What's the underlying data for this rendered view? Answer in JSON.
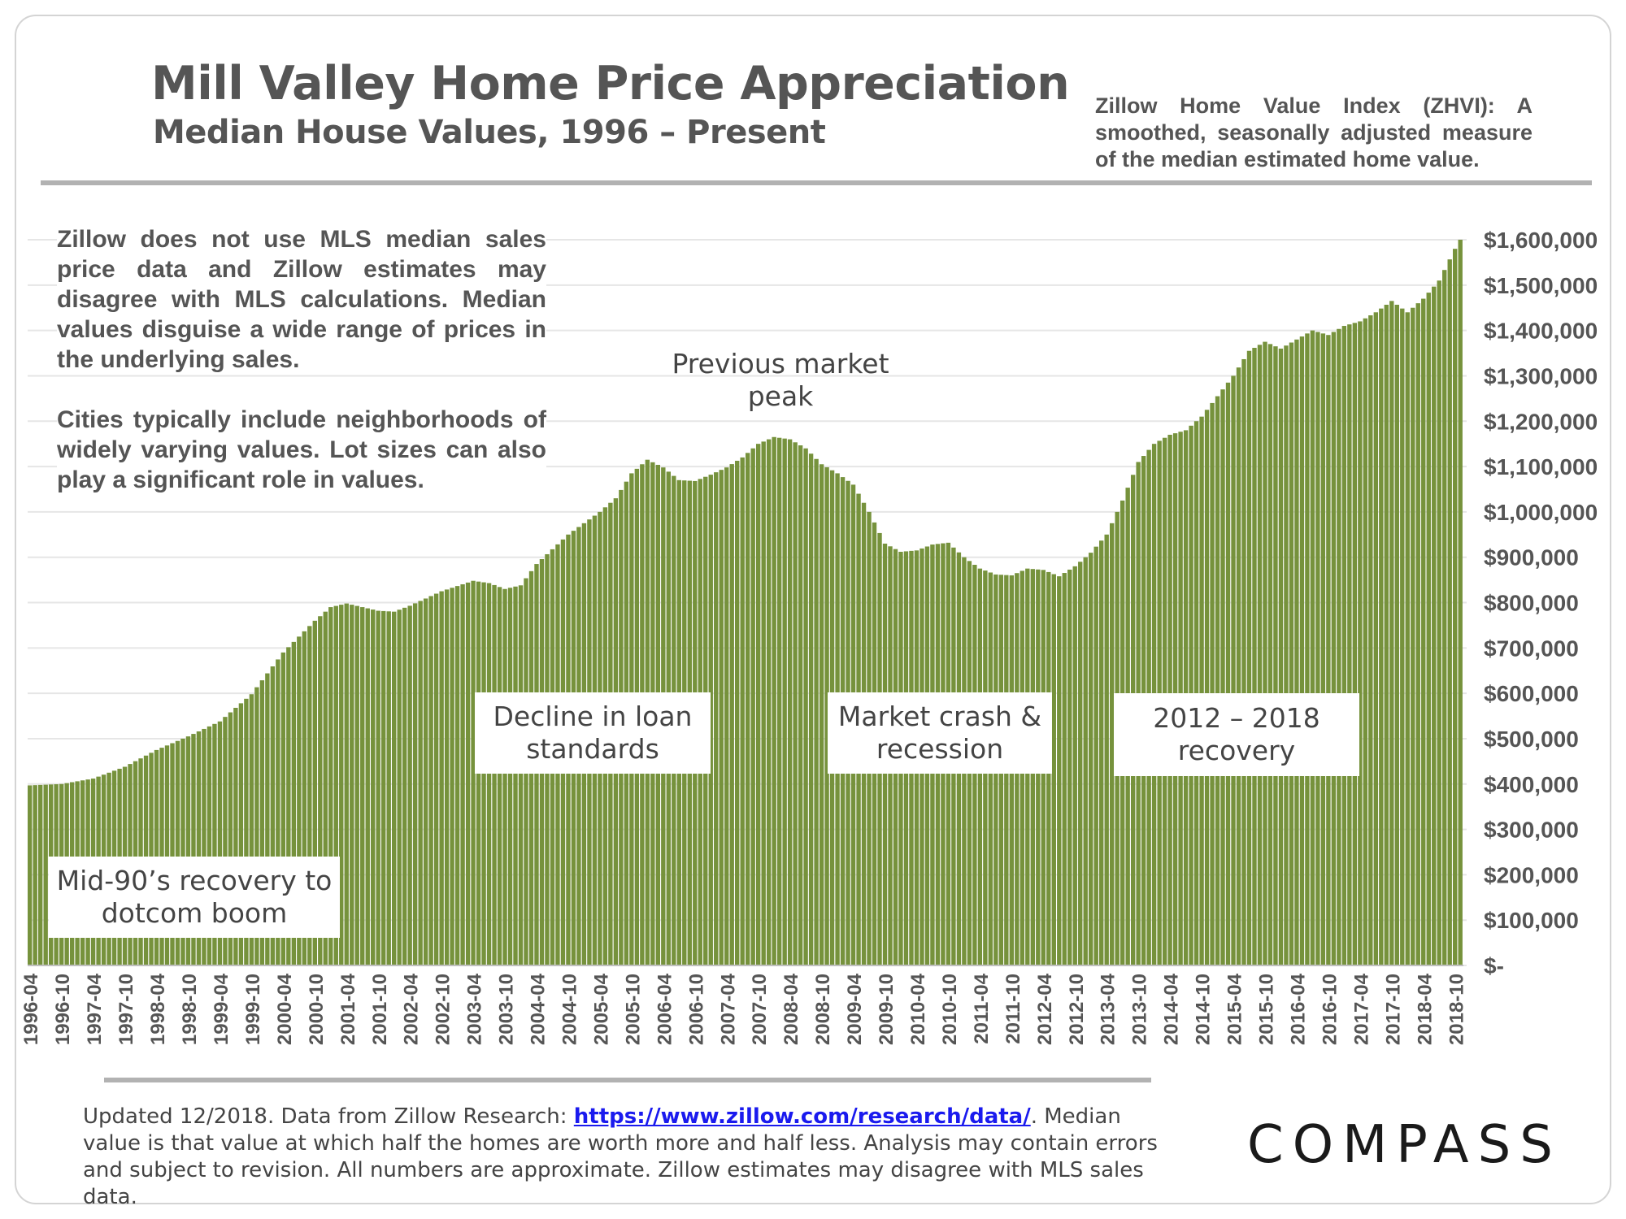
{
  "header": {
    "title": "Mill Valley Home Price Appreciation",
    "subtitle": "Median House Values, 1996 – Present",
    "zhvi_note": "Zillow Home Value Index (ZHVI): A smoothed, seasonally adjusted measure of the median estimated home value."
  },
  "notes": {
    "mls": "Zillow does not use MLS median sales price data and Zillow estimates may disagree with MLS calculations. Median values disguise a wide range of prices in the underlying sales.",
    "cities": "Cities typically include neighborhoods of widely varying values. Lot sizes can also play a significant role in values."
  },
  "callouts": {
    "mid90s": "Mid-90’s recovery to dotcom boom",
    "loans": "Decline in loan standards",
    "peak": "Previous market peak",
    "crash": "Market crash & recession",
    "recovery": "2012 – 2018 recovery"
  },
  "footer": {
    "prefix": "Updated 12/2018. Data from Zillow Research: ",
    "link": "https://www.zillow.com/research/data/",
    "suffix": ". Median value is that value at which half the homes are worth more and half less. Analysis may contain errors and subject to revision. All numbers are approximate. Zillow estimates may disagree with MLS sales data."
  },
  "brand": {
    "logo": "COMPASS"
  },
  "colors": {
    "bar": "#76923c",
    "bar_edge": "#ffffff",
    "grid": "#e6e6e6",
    "text": "#555555"
  },
  "chart_data": {
    "type": "bar",
    "title": "Mill Valley Home Price Appreciation",
    "subtitle": "Median House Values, 1996 – Present",
    "xlabel": "",
    "ylabel": "",
    "ylim": [
      0,
      1600000
    ],
    "yticks": [
      0,
      100000,
      200000,
      300000,
      400000,
      500000,
      600000,
      700000,
      800000,
      900000,
      1000000,
      1100000,
      1200000,
      1300000,
      1400000,
      1500000,
      1600000
    ],
    "ytick_labels": [
      "$-",
      "$100,000",
      "$200,000",
      "$300,000",
      "$400,000",
      "$500,000",
      "$600,000",
      "$700,000",
      "$800,000",
      "$900,000",
      "$1,000,000",
      "$1,100,000",
      "$1,200,000",
      "$1,300,000",
      "$1,400,000",
      "$1,500,000",
      "$1,600,000"
    ],
    "start_month": "1996-04",
    "end_month": "2018-11",
    "frequency": "monthly",
    "xtick_labels": [
      "1996-04",
      "1996-10",
      "1997-04",
      "1997-10",
      "1998-04",
      "1998-10",
      "1999-04",
      "1999-10",
      "2000-04",
      "2000-10",
      "2001-04",
      "2001-10",
      "2002-04",
      "2002-10",
      "2003-04",
      "2003-10",
      "2004-04",
      "2004-10",
      "2005-04",
      "2005-10",
      "2006-04",
      "2006-10",
      "2007-04",
      "2007-10",
      "2008-04",
      "2008-10",
      "2009-04",
      "2009-10",
      "2010-04",
      "2010-10",
      "2011-04",
      "2011-10",
      "2012-04",
      "2012-10",
      "2013-04",
      "2013-10",
      "2014-04",
      "2014-10",
      "2015-04",
      "2015-10",
      "2016-04",
      "2016-10",
      "2017-04",
      "2017-10",
      "2018-04",
      "2018-10"
    ],
    "anchors": [
      [
        "1996-04",
        397000
      ],
      [
        "1996-10",
        400000
      ],
      [
        "1997-04",
        412000
      ],
      [
        "1997-10",
        438000
      ],
      [
        "1998-04",
        475000
      ],
      [
        "1998-10",
        505000
      ],
      [
        "1999-04",
        538000
      ],
      [
        "1999-10",
        598000
      ],
      [
        "2000-04",
        690000
      ],
      [
        "2000-10",
        760000
      ],
      [
        "2001-01",
        790000
      ],
      [
        "2001-04",
        798000
      ],
      [
        "2001-10",
        782000
      ],
      [
        "2002-01",
        780000
      ],
      [
        "2002-04",
        793000
      ],
      [
        "2002-10",
        825000
      ],
      [
        "2003-04",
        848000
      ],
      [
        "2003-07",
        843000
      ],
      [
        "2003-10",
        830000
      ],
      [
        "2004-01",
        838000
      ],
      [
        "2004-04",
        885000
      ],
      [
        "2004-10",
        950000
      ],
      [
        "2005-04",
        1000000
      ],
      [
        "2005-07",
        1030000
      ],
      [
        "2005-10",
        1085000
      ],
      [
        "2006-01",
        1115000
      ],
      [
        "2006-04",
        1098000
      ],
      [
        "2006-07",
        1070000
      ],
      [
        "2006-10",
        1068000
      ],
      [
        "2007-01",
        1082000
      ],
      [
        "2007-04",
        1098000
      ],
      [
        "2007-07",
        1120000
      ],
      [
        "2007-10",
        1150000
      ],
      [
        "2008-01",
        1165000
      ],
      [
        "2008-04",
        1160000
      ],
      [
        "2008-07",
        1140000
      ],
      [
        "2008-10",
        1105000
      ],
      [
        "2009-01",
        1085000
      ],
      [
        "2009-04",
        1060000
      ],
      [
        "2009-07",
        1000000
      ],
      [
        "2009-10",
        930000
      ],
      [
        "2010-01",
        912000
      ],
      [
        "2010-04",
        915000
      ],
      [
        "2010-07",
        928000
      ],
      [
        "2010-10",
        932000
      ],
      [
        "2011-01",
        900000
      ],
      [
        "2011-04",
        875000
      ],
      [
        "2011-07",
        862000
      ],
      [
        "2011-10",
        860000
      ],
      [
        "2012-01",
        875000
      ],
      [
        "2012-04",
        872000
      ],
      [
        "2012-07",
        858000
      ],
      [
        "2012-10",
        880000
      ],
      [
        "2013-01",
        910000
      ],
      [
        "2013-04",
        950000
      ],
      [
        "2013-07",
        1025000
      ],
      [
        "2013-10",
        1110000
      ],
      [
        "2014-01",
        1150000
      ],
      [
        "2014-04",
        1170000
      ],
      [
        "2014-07",
        1180000
      ],
      [
        "2014-10",
        1210000
      ],
      [
        "2015-01",
        1255000
      ],
      [
        "2015-04",
        1300000
      ],
      [
        "2015-07",
        1355000
      ],
      [
        "2015-10",
        1375000
      ],
      [
        "2016-01",
        1360000
      ],
      [
        "2016-04",
        1380000
      ],
      [
        "2016-07",
        1400000
      ],
      [
        "2016-10",
        1390000
      ],
      [
        "2017-01",
        1410000
      ],
      [
        "2017-04",
        1420000
      ],
      [
        "2017-07",
        1440000
      ],
      [
        "2017-10",
        1465000
      ],
      [
        "2018-01",
        1440000
      ],
      [
        "2018-04",
        1470000
      ],
      [
        "2018-07",
        1510000
      ],
      [
        "2018-10",
        1580000
      ],
      [
        "2018-11",
        1600000
      ]
    ]
  }
}
